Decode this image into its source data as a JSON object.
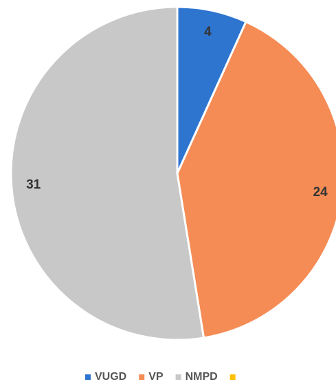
{
  "chart_data": {
    "type": "pie",
    "categories": [
      "VUGD",
      "VP",
      "NMPD",
      null
    ],
    "values": [
      4,
      24,
      31,
      0
    ],
    "colors": [
      "#2e75d0",
      "#f58c55",
      "#c8c8c8",
      "#ffc000"
    ],
    "legend": "bottom"
  }
}
